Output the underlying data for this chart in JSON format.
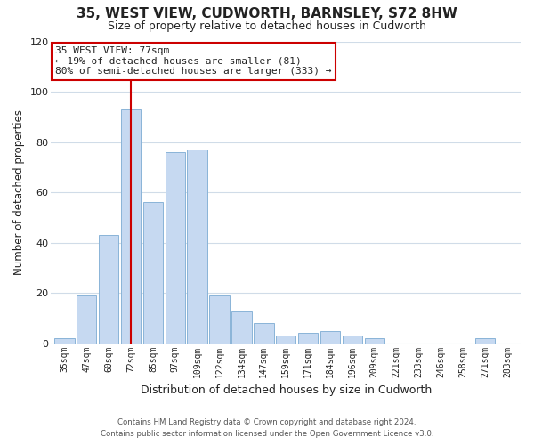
{
  "title": "35, WEST VIEW, CUDWORTH, BARNSLEY, S72 8HW",
  "subtitle": "Size of property relative to detached houses in Cudworth",
  "xlabel": "Distribution of detached houses by size in Cudworth",
  "ylabel": "Number of detached properties",
  "bar_labels": [
    "35sqm",
    "47sqm",
    "60sqm",
    "72sqm",
    "85sqm",
    "97sqm",
    "109sqm",
    "122sqm",
    "134sqm",
    "147sqm",
    "159sqm",
    "171sqm",
    "184sqm",
    "196sqm",
    "209sqm",
    "221sqm",
    "233sqm",
    "246sqm",
    "258sqm",
    "271sqm",
    "283sqm"
  ],
  "bar_values": [
    2,
    19,
    43,
    93,
    56,
    76,
    77,
    19,
    13,
    8,
    3,
    4,
    5,
    3,
    2,
    0,
    0,
    0,
    0,
    2,
    0
  ],
  "bar_color": "#c6d9f1",
  "bar_edge_color": "#8ab4d8",
  "ylim": [
    0,
    120
  ],
  "yticks": [
    0,
    20,
    40,
    60,
    80,
    100,
    120
  ],
  "vline_x_idx": 3,
  "vline_color": "#cc0000",
  "annotation_title": "35 WEST VIEW: 77sqm",
  "annotation_line1": "← 19% of detached houses are smaller (81)",
  "annotation_line2": "80% of semi-detached houses are larger (333) →",
  "annotation_box_color": "#ffffff",
  "annotation_box_edge": "#cc0000",
  "footer1": "Contains HM Land Registry data © Crown copyright and database right 2024.",
  "footer2": "Contains public sector information licensed under the Open Government Licence v3.0.",
  "background_color": "#ffffff",
  "grid_color": "#d0dce8"
}
